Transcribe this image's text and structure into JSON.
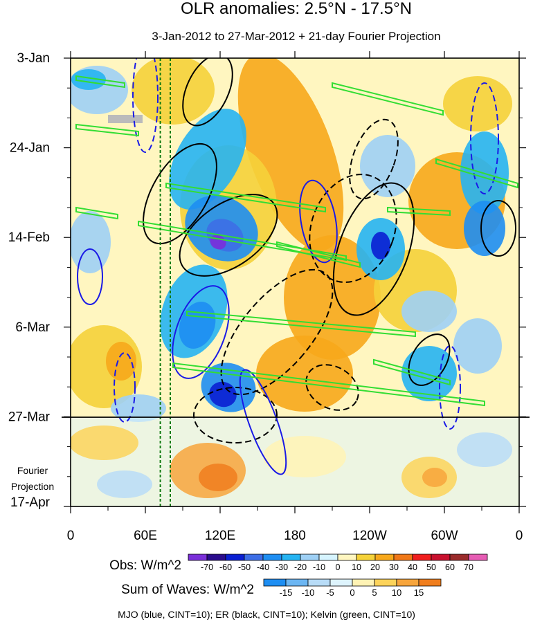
{
  "chart_data": {
    "type": "heatmap",
    "title": "OLR anomalies: 2.5°N - 17.5°N",
    "subtitle": "3-Jan-2012 to 27-Mar-2012 + 21-day Fourier Projection",
    "x_tick_labels": [
      "0",
      "60E",
      "120E",
      "180",
      "120W",
      "60W",
      "0"
    ],
    "x_ticks_lon": [
      0,
      60,
      120,
      180,
      240,
      300,
      360
    ],
    "y_tick_labels": [
      "3-Jan",
      "24-Jan",
      "14-Feb",
      "6-Mar",
      "27-Mar",
      "17-Apr"
    ],
    "y_ticks_day": [
      0,
      21,
      42,
      63,
      84,
      105
    ],
    "projection_start_day": 84,
    "projection_label": [
      "Fourier",
      "Projection"
    ],
    "dashed_marker_lons": [
      72,
      80
    ],
    "obs_colorbar": {
      "label": "Obs: W/m^2",
      "levels": [
        "-70",
        "-60",
        "-50",
        "-40",
        "-30",
        "-20",
        "-10",
        "0",
        "10",
        "20",
        "30",
        "40",
        "50",
        "60",
        "70"
      ],
      "colors": [
        "#7a2fd9",
        "#2a0c8c",
        "#0a1fd2",
        "#3d6ee6",
        "#1e8ef2",
        "#26b4f2",
        "#9ed0f5",
        "#d6f4ff",
        "#fff6c0",
        "#f5d23a",
        "#f7a81b",
        "#f07818",
        "#f01e1e",
        "#c8102e",
        "#9a2b2b",
        "#e65cb4"
      ]
    },
    "waves_colorbar": {
      "label": "Sum of Waves: W/m^2",
      "levels": [
        "-15",
        "-10",
        "-5",
        "0",
        "5",
        "10",
        "15"
      ],
      "colors": [
        "#1e8ef2",
        "#6cb6f2",
        "#b8dcf7",
        "#def4fd",
        "#fff3b5",
        "#fcd35a",
        "#f7a53c",
        "#f07e1e"
      ]
    },
    "footnote": "MJO (blue, CINT=10); ER (black, CINT=10); Kelvin (green, CINT=10)",
    "contour_series": [
      {
        "name": "MJO",
        "color": "#1a1ae6"
      },
      {
        "name": "ER",
        "color": "#000000"
      },
      {
        "name": "Kelvin",
        "color": "#33dd33"
      }
    ]
  }
}
